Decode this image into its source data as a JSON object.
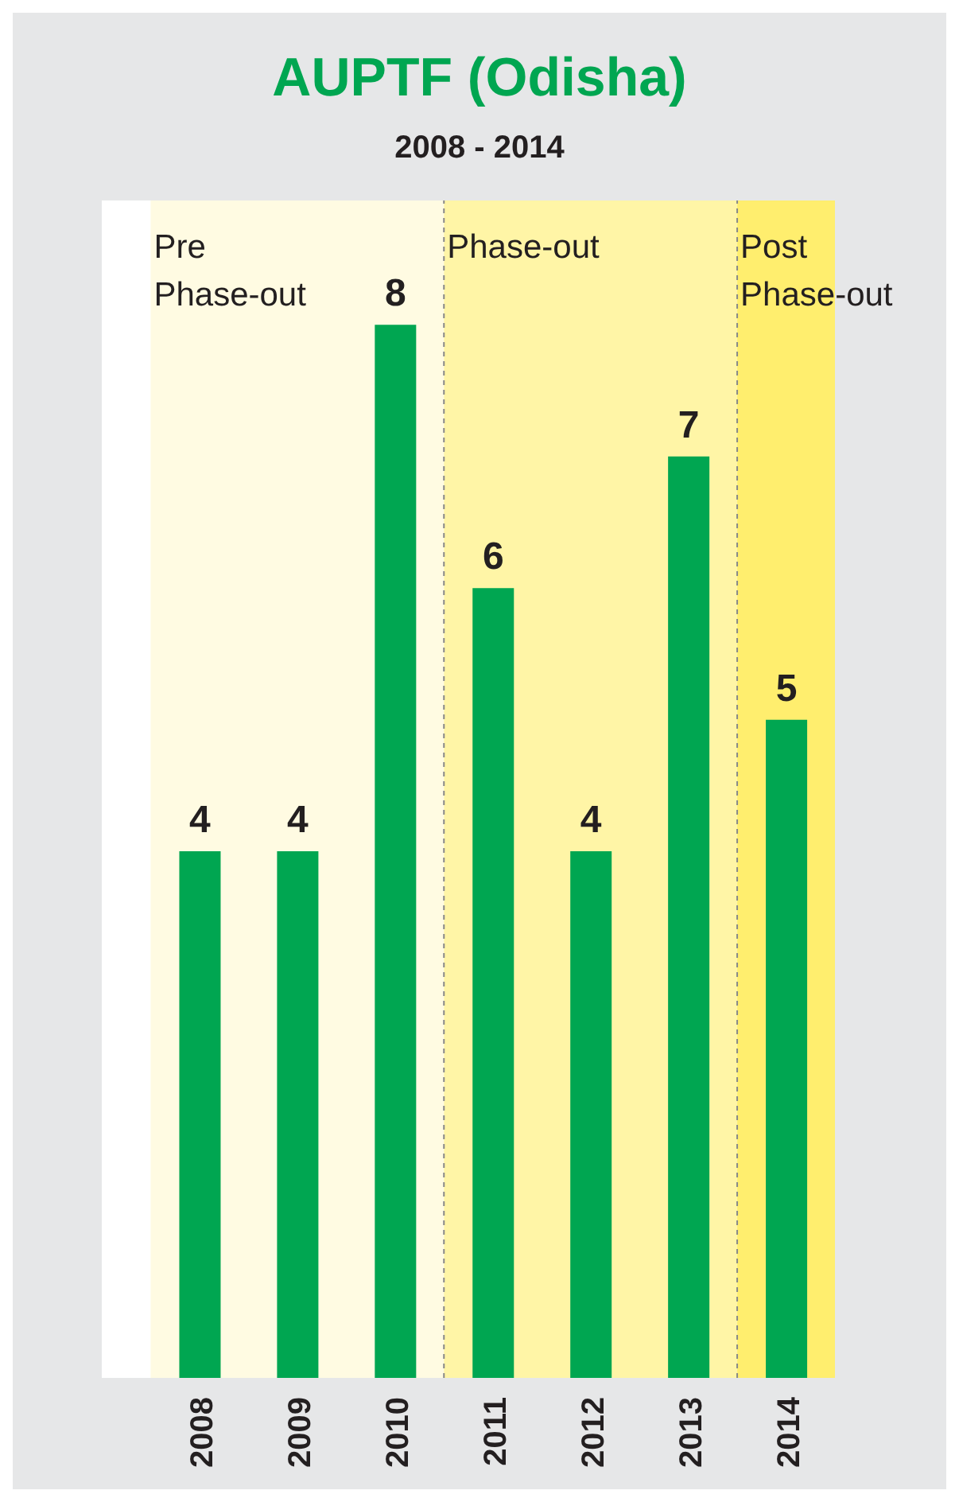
{
  "chart_data": {
    "type": "bar",
    "title": "AUPTF (Odisha)",
    "subtitle": "2008 - 2014",
    "categories": [
      "2008",
      "2009",
      "2010",
      "2011",
      "2012",
      "2013",
      "2014"
    ],
    "values": [
      4,
      4,
      8,
      6,
      4,
      7,
      5
    ],
    "color": "#00a651",
    "data_labels": true,
    "bands": [
      {
        "axis": "x",
        "from": "2008",
        "to": "2010",
        "label": "Pre Phase-out",
        "color": "#fffbe2"
      },
      {
        "axis": "x",
        "from": "2011",
        "to": "2013",
        "label": "Phase-out",
        "color": "#fff5a6"
      },
      {
        "axis": "x",
        "from": "2014",
        "to": "2014",
        "label": "Post Phase-out",
        "color": "#ffee6e"
      }
    ]
  }
}
